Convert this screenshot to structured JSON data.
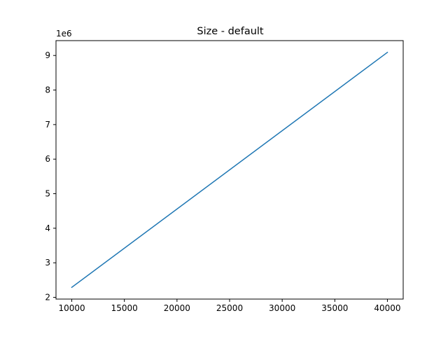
{
  "chart_data": {
    "type": "line",
    "title": "Size - default",
    "xlabel": "",
    "ylabel": "",
    "x_ticks": [
      "10000",
      "15000",
      "20000",
      "25000",
      "30000",
      "35000",
      "40000"
    ],
    "y_ticks": [
      "2",
      "3",
      "4",
      "5",
      "6",
      "7",
      "8",
      "9"
    ],
    "y_offset_label": "1e6",
    "xlim": [
      8500,
      41500
    ],
    "ylim": [
      1950000,
      9430000
    ],
    "grid": false,
    "series": [
      {
        "color": "#1f77b4",
        "x": [
          10000,
          40000
        ],
        "y": [
          2290000,
          9090000
        ]
      }
    ]
  }
}
